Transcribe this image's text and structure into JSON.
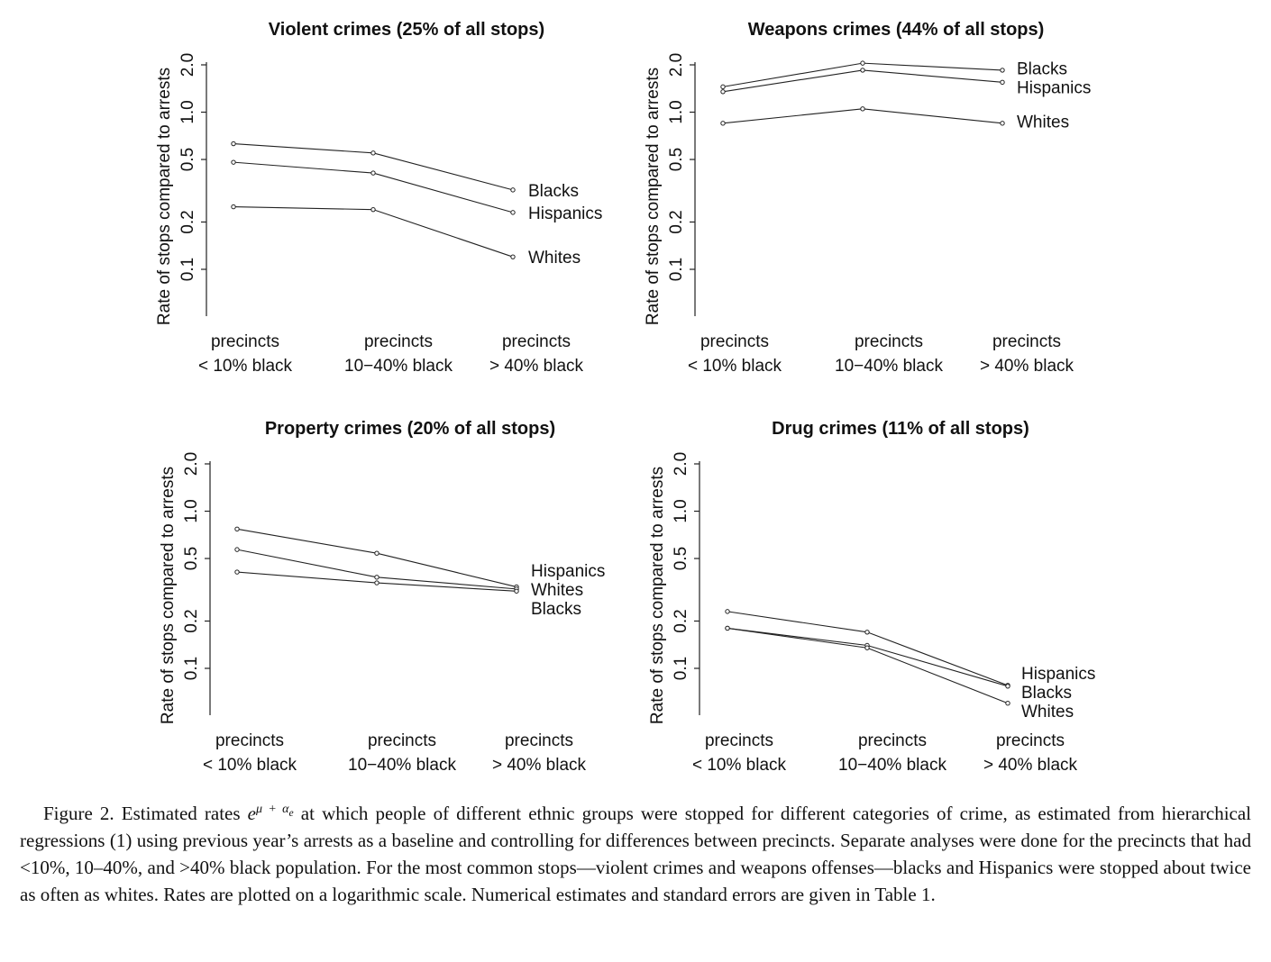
{
  "chart_data": [
    {
      "type": "line",
      "title": "Violent crimes (25% of all stops)",
      "ylabel": "Rate of stops compared to arrests",
      "yscale": "log",
      "ylim": [
        0.05,
        2.2
      ],
      "yticks": [
        "0.1",
        "0.2",
        "0.5",
        "1.0",
        "2.0"
      ],
      "categories": [
        [
          "precincts",
          "< 10% black"
        ],
        [
          "precincts",
          "10−40% black"
        ],
        [
          "precincts",
          "> 40% black"
        ]
      ],
      "series": [
        {
          "name": "Blacks",
          "values": [
            0.63,
            0.55,
            0.32
          ]
        },
        {
          "name": "Hispanics",
          "values": [
            0.48,
            0.41,
            0.23
          ]
        },
        {
          "name": "Whites",
          "values": [
            0.25,
            0.24,
            0.12
          ]
        }
      ]
    },
    {
      "type": "line",
      "title": "Weapons crimes (44% of all stops)",
      "ylabel": "Rate of stops compared to arrests",
      "yscale": "log",
      "ylim": [
        0.05,
        2.2
      ],
      "yticks": [
        "0.1",
        "0.2",
        "0.5",
        "1.0",
        "2.0"
      ],
      "categories": [
        [
          "precincts",
          "< 10% black"
        ],
        [
          "precincts",
          "10−40% black"
        ],
        [
          "precincts",
          "> 40% black"
        ]
      ],
      "series": [
        {
          "name": "Blacks",
          "values": [
            1.45,
            2.05,
            1.85
          ]
        },
        {
          "name": "Hispanics",
          "values": [
            1.35,
            1.85,
            1.55
          ]
        },
        {
          "name": "Whites",
          "values": [
            0.85,
            1.05,
            0.85
          ]
        }
      ]
    },
    {
      "type": "line",
      "title": "Property crimes (20% of all stops)",
      "ylabel": "Rate of stops compared to arrests",
      "yscale": "log",
      "ylim": [
        0.05,
        2.2
      ],
      "yticks": [
        "0.1",
        "0.2",
        "0.5",
        "1.0",
        "2.0"
      ],
      "categories": [
        [
          "precincts",
          "< 10% black"
        ],
        [
          "precincts",
          "10−40% black"
        ],
        [
          "precincts",
          "> 40% black"
        ]
      ],
      "series": [
        {
          "name": "Hispanics",
          "values": [
            0.77,
            0.54,
            0.33
          ]
        },
        {
          "name": "Whites",
          "values": [
            0.57,
            0.38,
            0.32
          ]
        },
        {
          "name": "Blacks",
          "values": [
            0.41,
            0.35,
            0.31
          ]
        }
      ]
    },
    {
      "type": "line",
      "title": "Drug crimes (11% of all stops)",
      "ylabel": "Rate of stops compared to arrests",
      "yscale": "log",
      "ylim": [
        0.05,
        2.2
      ],
      "yticks": [
        "0.1",
        "0.2",
        "0.5",
        "1.0",
        "2.0"
      ],
      "categories": [
        [
          "precincts",
          "< 10% black"
        ],
        [
          "precincts",
          "10−40% black"
        ],
        [
          "precincts",
          "> 40% black"
        ]
      ],
      "series": [
        {
          "name": "Hispanics",
          "values": [
            0.23,
            0.17,
            0.078
          ]
        },
        {
          "name": "Blacks",
          "values": [
            0.18,
            0.14,
            0.077
          ]
        },
        {
          "name": "Whites",
          "values": [
            0.18,
            0.135,
            0.06
          ]
        }
      ]
    }
  ],
  "caption": {
    "label": "Figure 2.",
    "pre": " Estimated rates ",
    "formula_base": "e",
    "formula_sup": "μ + α",
    "formula_sub": "e",
    "post": " at which people of different ethnic groups were stopped for different categories of crime, as estimated from hierarchical regressions (1) using previous year’s arrests as a baseline and controlling for differences between precincts. Separate analyses were done for the precincts that had <10%, 10–40%, and >40% black population. For the most common stops—violent crimes and weapons offenses—blacks and Hispanics were stopped about twice as often as whites. Rates are plotted on a logarithmic scale. Numerical estimates and standard errors are given in Table 1."
  }
}
